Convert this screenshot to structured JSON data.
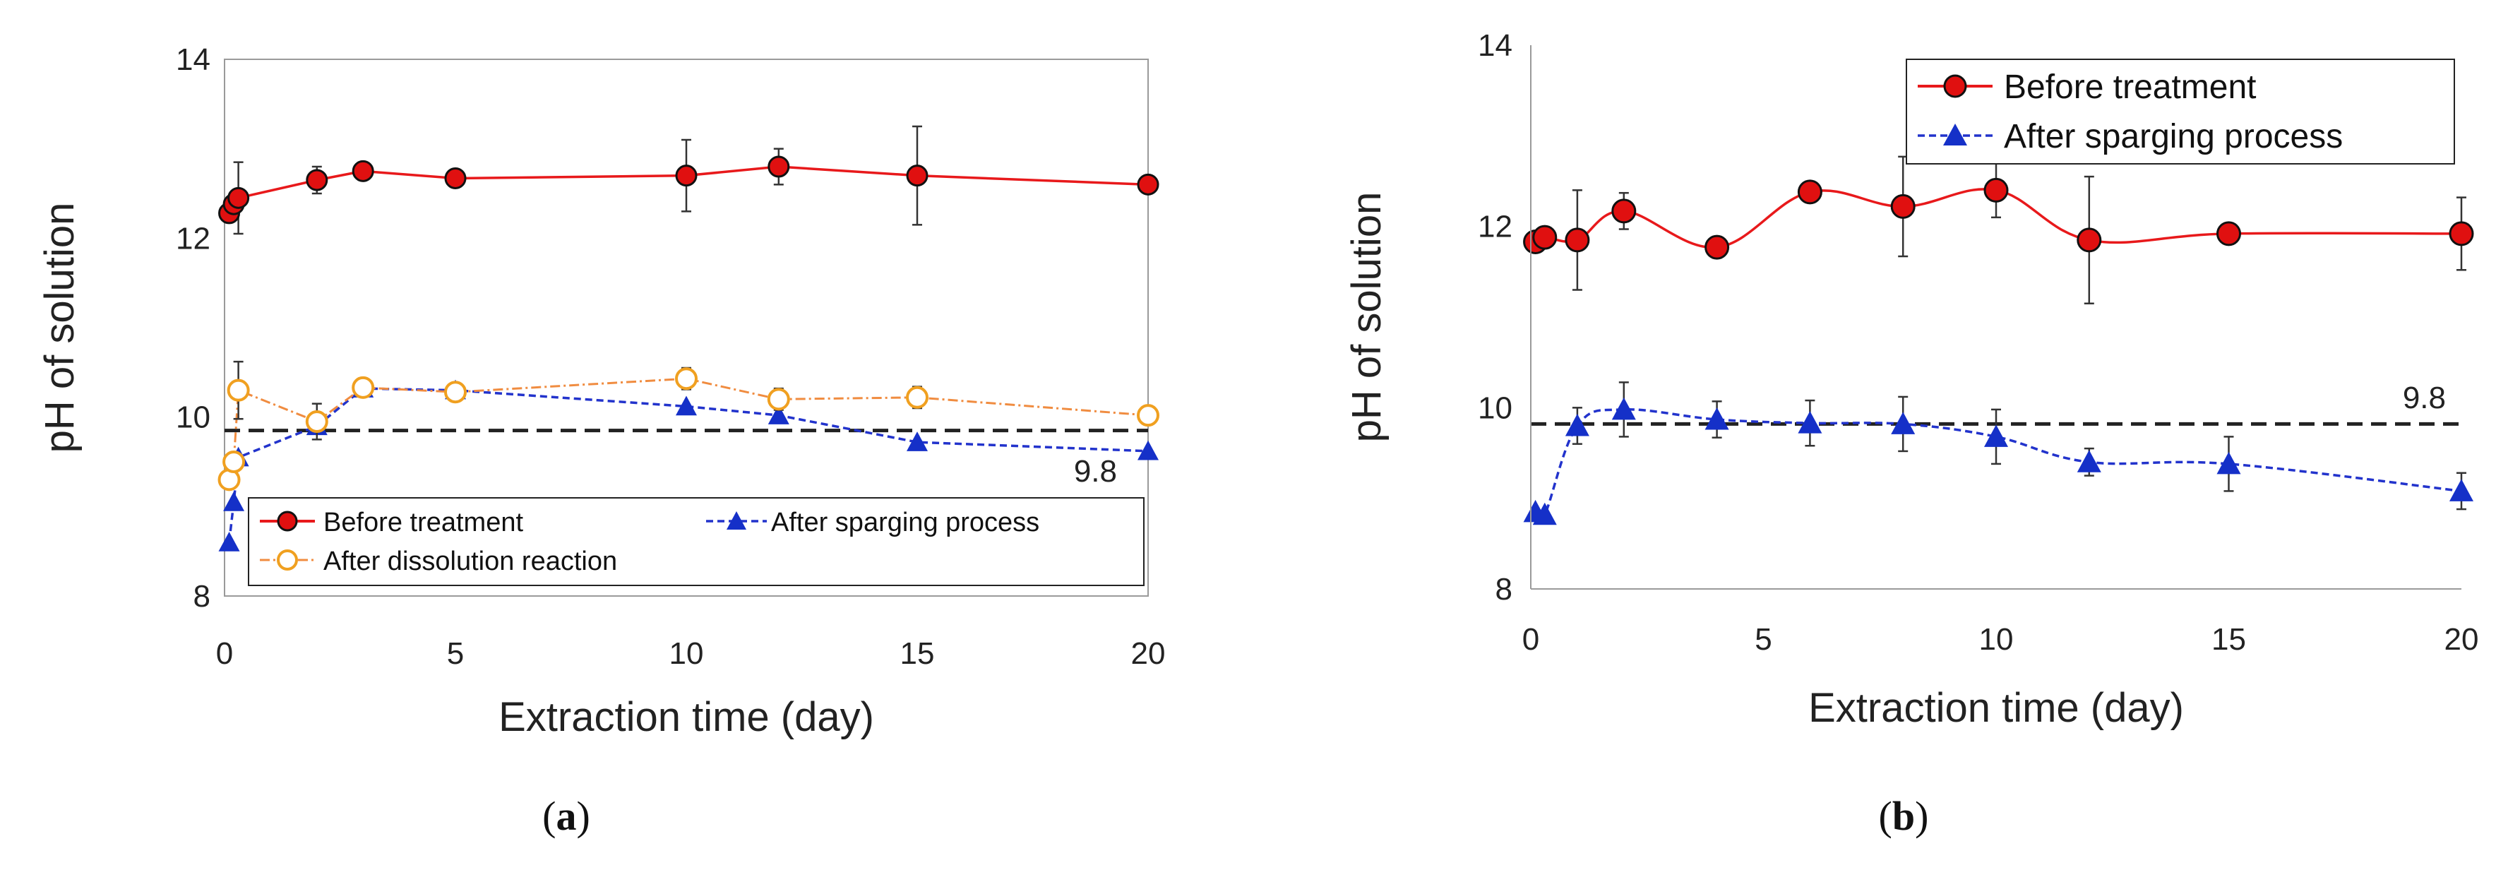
{
  "colors": {
    "before": "#e8191b",
    "before_marker": "#e01010",
    "after_sparging": "#2233cc",
    "after_sparging_marker": "#1530c8",
    "after_dissolution": "#f0a020",
    "after_dissolution_line": "#f08c40",
    "reference": "#222222"
  },
  "chart_data": [
    {
      "panel": "a",
      "caption_letter": "a",
      "type": "line",
      "xlabel": "Extraction time (day)",
      "ylabel": "pH of solution",
      "xlim": [
        0,
        20
      ],
      "ylim": [
        8,
        14
      ],
      "xticks": [
        0,
        5,
        10,
        15,
        20
      ],
      "yticks": [
        8,
        10,
        12,
        14
      ],
      "reference_line": {
        "y": 9.85,
        "label": "9.8"
      },
      "legend_position": "bottom",
      "series": [
        {
          "name": "Before treatment",
          "key": "before",
          "x": [
            0.1,
            0.2,
            0.3,
            2,
            3,
            5,
            10,
            12,
            15,
            20
          ],
          "y": [
            12.28,
            12.38,
            12.45,
            12.65,
            12.75,
            12.67,
            12.7,
            12.8,
            12.7,
            12.6
          ],
          "err": [
            0,
            0,
            0.4,
            0.15,
            0,
            0,
            0.4,
            0.2,
            0.55,
            0
          ]
        },
        {
          "name": "After sparging process",
          "key": "after_sparging",
          "x": [
            0.1,
            0.2,
            0.3,
            2,
            3,
            5,
            10,
            12,
            15,
            20
          ],
          "y": [
            8.6,
            9.05,
            9.55,
            9.9,
            10.32,
            10.3,
            10.12,
            10.02,
            9.72,
            9.62
          ],
          "err": [
            0,
            0,
            0,
            0,
            0,
            0,
            0,
            0,
            0,
            0
          ]
        },
        {
          "name": "After dissolution reaction",
          "key": "after_dissolution",
          "x": [
            0.1,
            0.2,
            0.3,
            2,
            3,
            5,
            10,
            12,
            15,
            20
          ],
          "y": [
            9.3,
            9.5,
            10.3,
            9.95,
            10.33,
            10.28,
            10.43,
            10.2,
            10.22,
            10.02
          ],
          "err": [
            0,
            0,
            0.32,
            0.2,
            0,
            0,
            0.12,
            0.12,
            0.12,
            0
          ]
        }
      ]
    },
    {
      "panel": "b",
      "caption_letter": "b",
      "type": "line",
      "xlabel": "Extraction time (day)",
      "ylabel": "pH of solution",
      "xlim": [
        0,
        20
      ],
      "ylim": [
        8,
        14
      ],
      "xticks": [
        0,
        5,
        10,
        15,
        20
      ],
      "yticks": [
        8,
        10,
        12,
        14
      ],
      "reference_line": {
        "y": 9.82,
        "label": "9.8"
      },
      "legend_position": "top-right",
      "series": [
        {
          "name": "Before treatment",
          "key": "before",
          "x": [
            0.1,
            0.3,
            1,
            2,
            4,
            6,
            8,
            10,
            12,
            15,
            20
          ],
          "y": [
            11.83,
            11.88,
            11.85,
            12.17,
            11.77,
            12.38,
            12.22,
            12.4,
            11.85,
            11.92,
            11.92
          ],
          "err": [
            0,
            0,
            0.55,
            0.2,
            0,
            0,
            0.55,
            0.3,
            0.7,
            0,
            0.4
          ]
        },
        {
          "name": "After sparging process",
          "key": "after_sparging",
          "x": [
            0.1,
            0.3,
            1,
            2,
            4,
            6,
            8,
            10,
            12,
            15,
            20
          ],
          "y": [
            8.85,
            8.82,
            9.8,
            9.98,
            9.87,
            9.83,
            9.82,
            9.68,
            9.4,
            9.38,
            9.08
          ],
          "err": [
            0,
            0,
            0.2,
            0.3,
            0.2,
            0.25,
            0.3,
            0.3,
            0.15,
            0.3,
            0.2
          ]
        }
      ]
    }
  ]
}
